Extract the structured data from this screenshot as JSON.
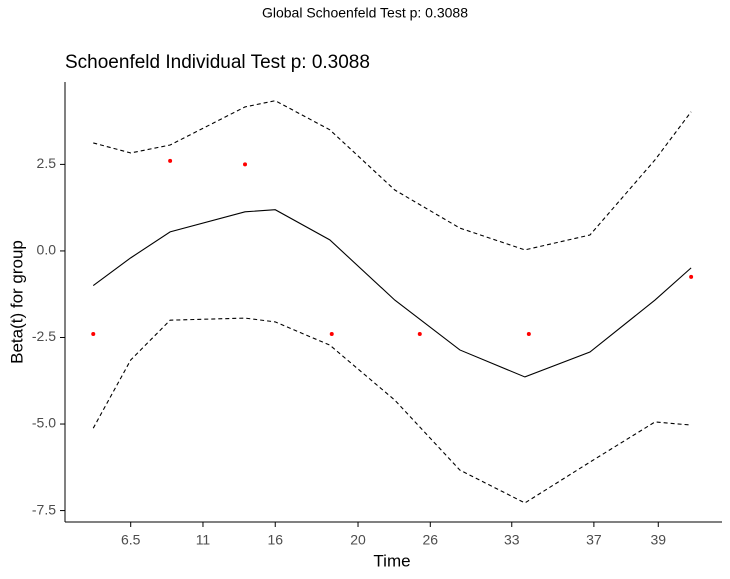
{
  "chart_data": {
    "type": "scatter",
    "suptitle": "Global Schoenfeld Test p: 0.3088",
    "title": "Schoenfeld Individual Test p: 0.3088",
    "xlabel": "Time",
    "ylabel": "Beta(t) for group",
    "xlim": [
      0,
      10
    ],
    "ylim": [
      -7.83,
      4.88
    ],
    "xticks": [
      {
        "value": 1.0,
        "label": "6.5"
      },
      {
        "value": 2.1,
        "label": "11"
      },
      {
        "value": 3.2,
        "label": "16"
      },
      {
        "value": 4.46,
        "label": "20"
      },
      {
        "value": 5.56,
        "label": "26"
      },
      {
        "value": 6.8,
        "label": "33"
      },
      {
        "value": 8.05,
        "label": "37"
      },
      {
        "value": 9.03,
        "label": "39"
      }
    ],
    "yticks": [
      {
        "value": 2.5,
        "label": "2.5"
      },
      {
        "value": 0,
        "label": "0.0"
      },
      {
        "value": -2.5,
        "label": "-2.5"
      },
      {
        "value": -5,
        "label": "-5.0"
      },
      {
        "value": -7.5,
        "label": "-7.5"
      }
    ],
    "points": {
      "color": "#ff0000",
      "x": [
        0.43,
        1.6,
        2.74,
        4.06,
        5.4,
        7.06,
        9.53
      ],
      "values": [
        -2.4,
        2.6,
        2.5,
        -2.4,
        -2.4,
        -2.4,
        -0.75
      ]
    },
    "line_x": [
      0.43,
      1.0,
      1.6,
      2.74,
      3.2,
      4.03,
      5.02,
      6.01,
      7.0,
      7.99,
      8.98,
      9.53
    ],
    "lines": [
      {
        "dash": false,
        "values": [
          -1.0,
          -0.2,
          0.55,
          1.13,
          1.19,
          0.32,
          -1.42,
          -2.86,
          -3.64,
          -2.92,
          -1.42,
          -0.49
        ]
      },
      {
        "dash": true,
        "values": [
          3.12,
          2.83,
          3.06,
          4.16,
          4.34,
          3.5,
          1.76,
          0.66,
          0.03,
          0.46,
          2.63,
          4.02
        ]
      },
      {
        "dash": true,
        "values": [
          -5.12,
          -3.15,
          -2.0,
          -1.94,
          -2.05,
          -2.72,
          -4.31,
          -6.33,
          -7.28,
          -6.1,
          -4.94,
          -5.03
        ]
      }
    ]
  }
}
